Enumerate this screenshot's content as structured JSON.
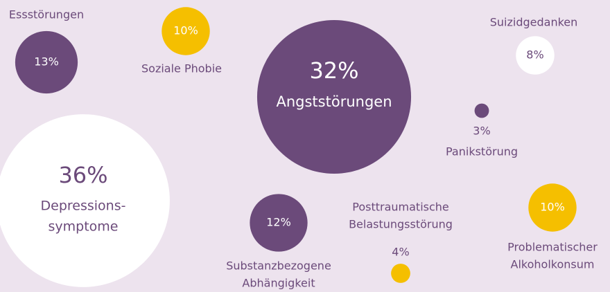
{
  "chart_data": {
    "type": "bubble",
    "categories": [
      [
        "Essstörungen"
      ],
      [
        "Soziale Phobie"
      ],
      [
        "Angststörungen"
      ],
      [
        "Suizidgedanken"
      ],
      [
        "Panikstörung"
      ],
      [
        "Depressions-",
        "symptome"
      ],
      [
        "Substanzbezogene",
        "Abhängigkeit"
      ],
      [
        "Posttraumatische",
        "Belastungsstörung"
      ],
      [
        "Problematischer",
        "Alkoholkonsum"
      ]
    ],
    "values": [
      13,
      10,
      32,
      8,
      3,
      36,
      12,
      4,
      10
    ],
    "value_labels": [
      "13%",
      "10%",
      "32%",
      "8%",
      "3%",
      "36%",
      "12%",
      "4%",
      "10%"
    ],
    "colors": [
      "#6b4a7a",
      "#f5bf00",
      "#6b4a7a",
      "#ffffff",
      "#6b4a7a",
      "#ffffff",
      "#6b4a7a",
      "#f5bf00",
      "#f5bf00"
    ]
  }
}
